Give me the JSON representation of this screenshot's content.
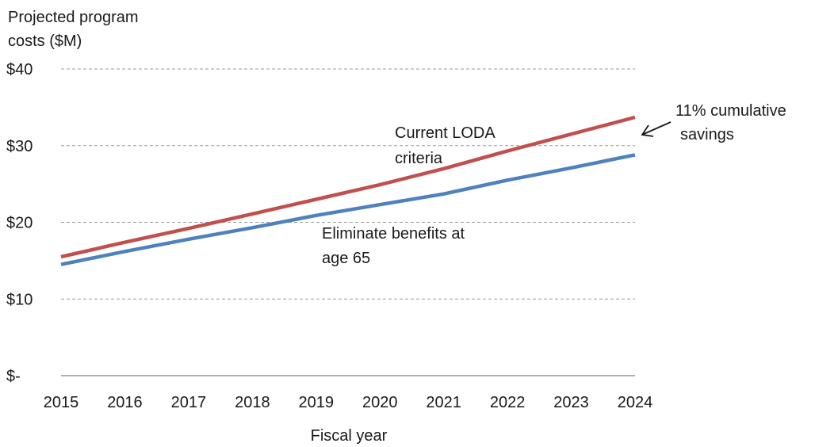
{
  "chart_data": {
    "type": "line",
    "title": "",
    "ylabel": [
      "Projected program",
      "costs ($M)"
    ],
    "xlabel": "Fiscal year",
    "x": [
      2015,
      2016,
      2017,
      2018,
      2019,
      2020,
      2021,
      2022,
      2023,
      2024
    ],
    "x_tick_labels": [
      "2015",
      "2016",
      "2017",
      "2018",
      "2019",
      "2020",
      "2021",
      "2022",
      "2023",
      "2024"
    ],
    "y_ticks": [
      0,
      10,
      20,
      30,
      40
    ],
    "y_tick_labels": [
      "$-",
      "$10",
      "$20",
      "$30",
      "$40"
    ],
    "ylim": [
      0,
      40
    ],
    "grid": "horizontal dashed",
    "legend": "none (inline labels)",
    "series": [
      {
        "name": "Current LODA criteria",
        "color": "#c0504d",
        "values": [
          15.5,
          17.4,
          19.2,
          21.1,
          23.0,
          24.9,
          27.0,
          29.3,
          31.5,
          33.7
        ]
      },
      {
        "name": "Eliminate benefits at age 65",
        "color": "#4f81bd",
        "values": [
          14.5,
          16.2,
          17.8,
          19.3,
          20.9,
          22.3,
          23.7,
          25.5,
          27.1,
          28.8
        ]
      }
    ],
    "annotations": {
      "series_label_1": [
        "Current LODA",
        "criteria"
      ],
      "series_label_2": [
        "Eliminate benefits at",
        "age 65"
      ],
      "callout": [
        "11% cumulative",
        "savings"
      ]
    }
  }
}
